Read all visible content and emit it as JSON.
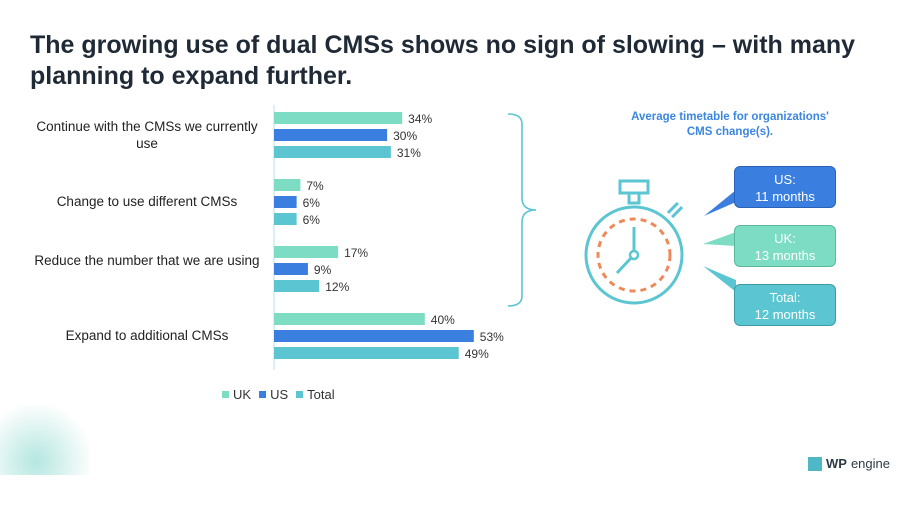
{
  "title": "The growing use of dual CMSs shows no sign of slowing – with many planning to expand further.",
  "colors": {
    "UK": "#7dddc4",
    "US": "#3a7fe0",
    "Total": "#5bc6d1",
    "accent_orange": "#ee8a5a"
  },
  "chart_data": {
    "type": "bar",
    "orientation": "horizontal",
    "categories": [
      "Continue with the CMSs we currently use",
      "Change to use different CMSs",
      "Reduce the number that we are using",
      "Expand to additional CMSs"
    ],
    "series": [
      {
        "name": "UK",
        "values": [
          34,
          7,
          17,
          40
        ]
      },
      {
        "name": "US",
        "values": [
          30,
          6,
          9,
          53
        ]
      },
      {
        "name": "Total",
        "values": [
          31,
          6,
          12,
          49
        ]
      }
    ],
    "unit": "%",
    "xlim": [
      0,
      100
    ],
    "grid": false,
    "legend": "bottom-left"
  },
  "side": {
    "title": "Average timetable for organizations' CMS change(s).",
    "bubbles": [
      {
        "label": "US:",
        "value": "11 months"
      },
      {
        "label": "UK:",
        "value": "13 months"
      },
      {
        "label": "Total:",
        "value": "12 months"
      }
    ]
  },
  "logo": {
    "text": "WP engine"
  },
  "icons": [
    "stopwatch-icon",
    "brace-icon"
  ]
}
